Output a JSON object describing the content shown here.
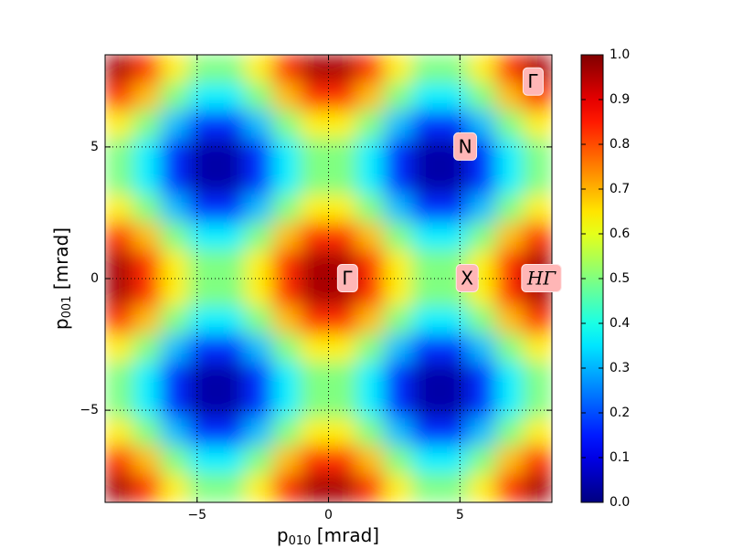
{
  "chart_data": {
    "type": "heatmap",
    "xlabel": [
      "p",
      "010",
      " [mrad]"
    ],
    "ylabel": [
      "p",
      "001",
      " [mrad]"
    ],
    "xlim": [
      -8.5,
      8.5
    ],
    "ylim": [
      -8.5,
      8.5
    ],
    "xticks": [
      {
        "value": -5,
        "label": "−5"
      },
      0,
      5
    ],
    "yticks": [
      {
        "value": -5,
        "label": "−5"
      },
      0,
      5
    ],
    "grid": true,
    "z": [
      [
        0.96,
        0.83,
        0.64,
        0.5,
        0.5,
        0.64,
        0.83,
        0.96,
        0.96,
        0.83,
        0.64,
        0.5,
        0.5,
        0.64,
        0.83,
        0.96
      ],
      [
        0.83,
        0.69,
        0.5,
        0.36,
        0.36,
        0.5,
        0.69,
        0.83,
        0.83,
        0.69,
        0.5,
        0.36,
        0.36,
        0.5,
        0.69,
        0.83
      ],
      [
        0.64,
        0.5,
        0.31,
        0.17,
        0.17,
        0.31,
        0.5,
        0.64,
        0.64,
        0.5,
        0.31,
        0.17,
        0.17,
        0.31,
        0.5,
        0.64
      ],
      [
        0.5,
        0.36,
        0.17,
        0.04,
        0.04,
        0.17,
        0.36,
        0.5,
        0.5,
        0.36,
        0.17,
        0.04,
        0.04,
        0.17,
        0.36,
        0.5
      ],
      [
        0.5,
        0.36,
        0.17,
        0.04,
        0.04,
        0.17,
        0.36,
        0.5,
        0.5,
        0.36,
        0.17,
        0.04,
        0.04,
        0.17,
        0.36,
        0.5
      ],
      [
        0.64,
        0.5,
        0.31,
        0.17,
        0.17,
        0.31,
        0.5,
        0.64,
        0.64,
        0.5,
        0.31,
        0.17,
        0.17,
        0.31,
        0.5,
        0.64
      ],
      [
        0.83,
        0.69,
        0.5,
        0.36,
        0.36,
        0.5,
        0.69,
        0.83,
        0.83,
        0.69,
        0.5,
        0.36,
        0.36,
        0.5,
        0.69,
        0.83
      ],
      [
        0.96,
        0.83,
        0.64,
        0.5,
        0.5,
        0.64,
        0.83,
        0.96,
        0.96,
        0.83,
        0.64,
        0.5,
        0.5,
        0.64,
        0.83,
        0.96
      ],
      [
        0.96,
        0.83,
        0.64,
        0.5,
        0.5,
        0.64,
        0.83,
        0.96,
        0.96,
        0.83,
        0.64,
        0.5,
        0.5,
        0.64,
        0.83,
        0.96
      ],
      [
        0.83,
        0.69,
        0.5,
        0.36,
        0.36,
        0.5,
        0.69,
        0.83,
        0.83,
        0.69,
        0.5,
        0.36,
        0.36,
        0.5,
        0.69,
        0.83
      ],
      [
        0.64,
        0.5,
        0.31,
        0.17,
        0.17,
        0.31,
        0.5,
        0.64,
        0.64,
        0.5,
        0.31,
        0.17,
        0.17,
        0.31,
        0.5,
        0.64
      ],
      [
        0.5,
        0.36,
        0.17,
        0.04,
        0.04,
        0.17,
        0.36,
        0.5,
        0.5,
        0.36,
        0.17,
        0.04,
        0.04,
        0.17,
        0.36,
        0.5
      ],
      [
        0.5,
        0.36,
        0.17,
        0.04,
        0.04,
        0.17,
        0.36,
        0.5,
        0.5,
        0.36,
        0.17,
        0.04,
        0.04,
        0.17,
        0.36,
        0.5
      ],
      [
        0.64,
        0.5,
        0.31,
        0.17,
        0.17,
        0.31,
        0.5,
        0.64,
        0.64,
        0.5,
        0.31,
        0.17,
        0.17,
        0.31,
        0.5,
        0.64
      ],
      [
        0.83,
        0.69,
        0.5,
        0.36,
        0.36,
        0.5,
        0.69,
        0.83,
        0.83,
        0.69,
        0.5,
        0.36,
        0.36,
        0.5,
        0.69,
        0.83
      ],
      [
        0.96,
        0.83,
        0.64,
        0.5,
        0.5,
        0.64,
        0.83,
        0.96,
        0.96,
        0.83,
        0.64,
        0.5,
        0.5,
        0.64,
        0.83,
        0.96
      ]
    ],
    "colormap": "jet",
    "clim": [
      0,
      1
    ],
    "cticks": [
      {
        "value": 0,
        "label": "0.0"
      },
      0.1,
      0.2,
      0.3,
      0.4,
      0.5,
      0.6,
      0.7,
      0.8,
      0.9,
      {
        "value": 1,
        "label": "1.0"
      }
    ],
    "annotations": [
      {
        "text": "Γ",
        "x": 0.71,
        "y": 0,
        "italic": false
      },
      {
        "text": "X",
        "x": 5.27,
        "y": 0,
        "italic": false
      },
      {
        "text": "HΓ",
        "x": 8.1,
        "y": 0,
        "italic": true
      },
      {
        "text": "N",
        "x": 5.2,
        "y": 5.0,
        "italic": false
      },
      {
        "text": "Γ",
        "x": 7.77,
        "y": 7.47,
        "italic": false
      }
    ]
  }
}
